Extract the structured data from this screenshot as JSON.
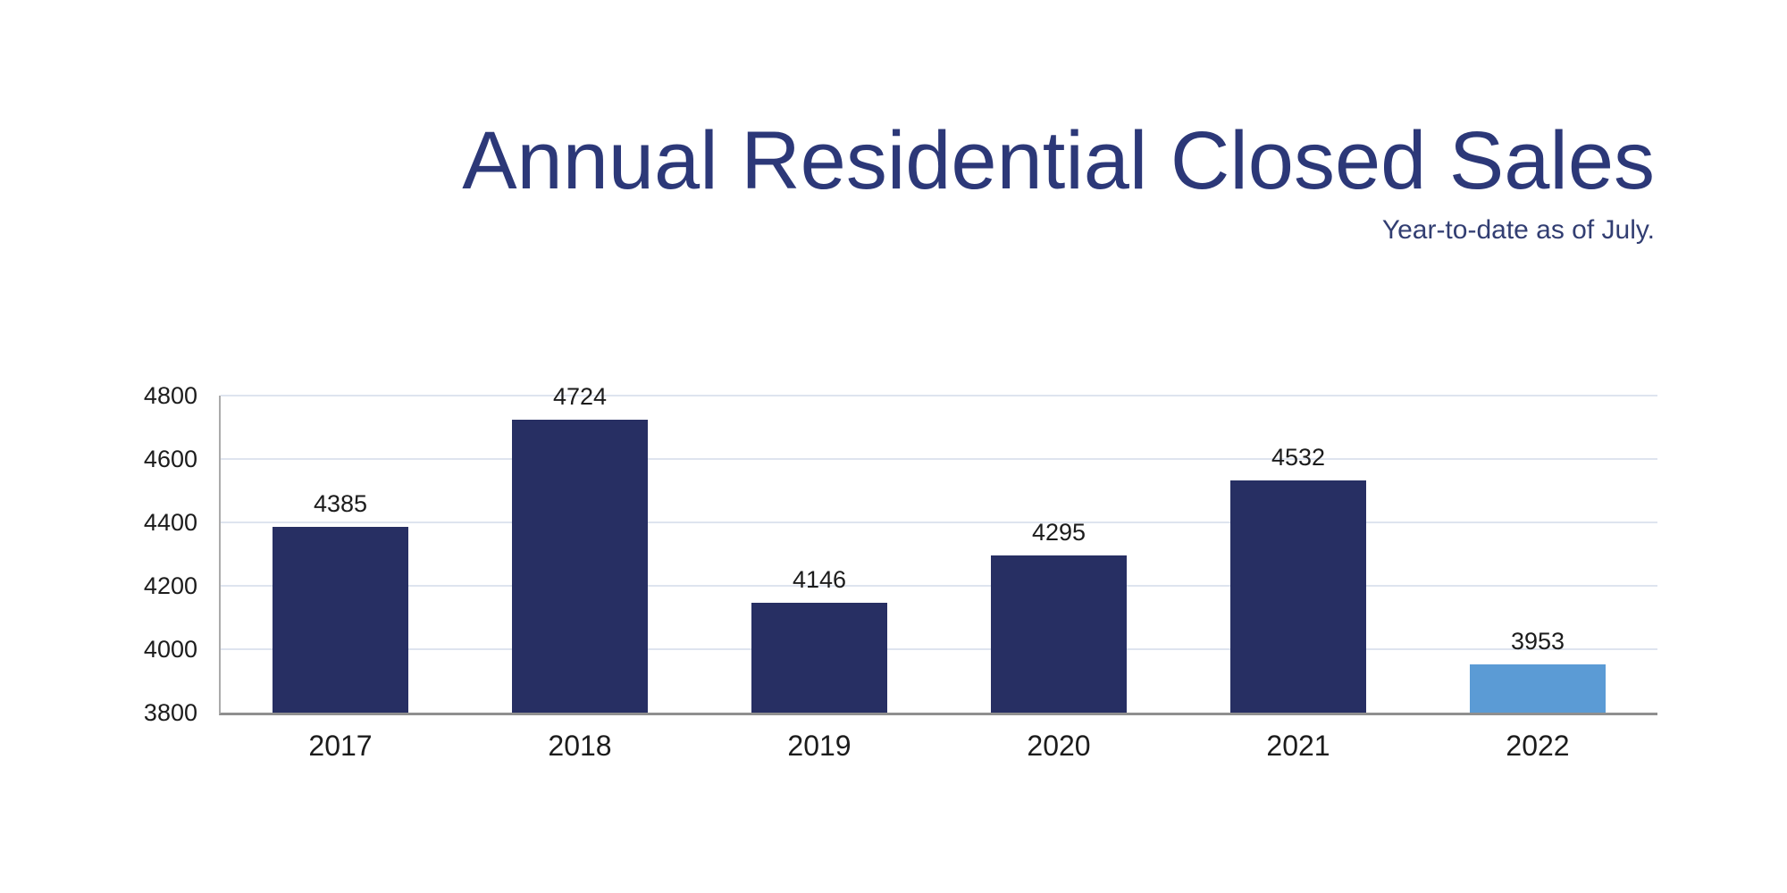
{
  "header": {
    "title": "Annual Residential Closed Sales",
    "subtitle": "Year-to-date as of July."
  },
  "colors": {
    "title": "#2C3878",
    "subtitle": "#323E72",
    "bar_default": "#272F63",
    "bar_highlight": "#5B9BD5",
    "data_label": "#1C1C1C",
    "tick_label": "#1C1C1C",
    "gridline": "#DEE4EF",
    "axis_line": "#8F8F8F"
  },
  "chart_data": {
    "type": "bar",
    "title": "Annual Residential Closed Sales",
    "subtitle": "Year-to-date as of July.",
    "categories": [
      "2017",
      "2018",
      "2019",
      "2020",
      "2021",
      "2022"
    ],
    "values": [
      4385,
      4724,
      4146,
      4295,
      4532,
      3953
    ],
    "bar_colors": [
      "#272F63",
      "#272F63",
      "#272F63",
      "#272F63",
      "#272F63",
      "#5B9BD5"
    ],
    "highlighted_category": "2022",
    "value_labels": "above-bars",
    "xlabel": "",
    "ylabel": "",
    "ylim": [
      3800,
      4800
    ],
    "yticks": [
      3800,
      4000,
      4200,
      4400,
      4600,
      4800
    ],
    "grid": "horizontal",
    "legend_position": "none"
  }
}
